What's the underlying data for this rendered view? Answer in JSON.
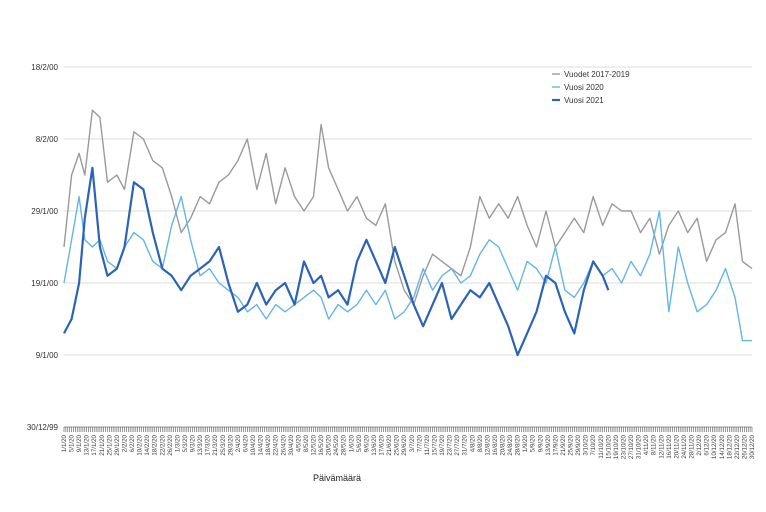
{
  "chart_data": {
    "type": "line",
    "title": "",
    "xlabel": "Päivämäärä",
    "ylabel": "",
    "x_start": "1/1/20",
    "x_end": "30/12/20",
    "x_tick_step_days": 4,
    "y_ticks": [
      "30/12/99",
      "9/1/00",
      "19/1/00",
      "29/1/00",
      "8/2/00",
      "18/2/00"
    ],
    "ylim": [
      "30/12/99",
      "18/2/00"
    ],
    "grid": "horizontal",
    "legend_position": "top-right",
    "series": [
      {
        "name": "Vuodet 2017-2019",
        "color": "#9a9a9a",
        "points": [
          [
            "1/1/20",
            "24/1/00"
          ],
          [
            "5/1/20",
            "3/2/00"
          ],
          [
            "9/1/20",
            "6/2/00"
          ],
          [
            "12/1/20",
            "3/2/00"
          ],
          [
            "16/1/20",
            "12/2/00"
          ],
          [
            "20/1/20",
            "11/2/00"
          ],
          [
            "24/1/20",
            "2/2/00"
          ],
          [
            "29/1/20",
            "3/2/00"
          ],
          [
            "2/2/20",
            "1/2/00"
          ],
          [
            "7/2/20",
            "9/2/00"
          ],
          [
            "12/2/20",
            "8/2/00"
          ],
          [
            "17/2/20",
            "5/2/00"
          ],
          [
            "22/2/20",
            "4/2/00"
          ],
          [
            "27/2/20",
            "31/1/00"
          ],
          [
            "3/3/20",
            "26/1/00"
          ],
          [
            "8/3/20",
            "28/1/00"
          ],
          [
            "13/3/20",
            "31/1/00"
          ],
          [
            "18/3/20",
            "30/1/00"
          ],
          [
            "23/3/20",
            "2/2/00"
          ],
          [
            "28/3/20",
            "3/2/00"
          ],
          [
            "2/4/20",
            "5/2/00"
          ],
          [
            "7/4/20",
            "8/2/00"
          ],
          [
            "12/4/20",
            "1/2/00"
          ],
          [
            "17/4/20",
            "6/2/00"
          ],
          [
            "22/4/20",
            "30/1/00"
          ],
          [
            "27/4/20",
            "4/2/00"
          ],
          [
            "2/5/20",
            "31/1/00"
          ],
          [
            "7/5/20",
            "29/1/00"
          ],
          [
            "12/5/20",
            "31/1/00"
          ],
          [
            "16/5/20",
            "10/2/00"
          ],
          [
            "20/5/20",
            "4/2/00"
          ],
          [
            "25/5/20",
            "1/2/00"
          ],
          [
            "30/5/20",
            "29/1/00"
          ],
          [
            "4/6/20",
            "31/1/00"
          ],
          [
            "9/6/20",
            "28/1/00"
          ],
          [
            "14/6/20",
            "27/1/00"
          ],
          [
            "19/6/20",
            "30/1/00"
          ],
          [
            "24/6/20",
            "22/1/00"
          ],
          [
            "29/6/20",
            "18/1/00"
          ],
          [
            "4/7/20",
            "16/1/00"
          ],
          [
            "9/7/20",
            "20/1/00"
          ],
          [
            "14/7/20",
            "23/1/00"
          ],
          [
            "19/7/20",
            "22/1/00"
          ],
          [
            "24/7/20",
            "21/1/00"
          ],
          [
            "29/7/20",
            "20/1/00"
          ],
          [
            "3/8/20",
            "24/1/00"
          ],
          [
            "8/8/20",
            "31/1/00"
          ],
          [
            "13/8/20",
            "28/1/00"
          ],
          [
            "18/8/20",
            "30/1/00"
          ],
          [
            "23/8/20",
            "28/1/00"
          ],
          [
            "28/8/20",
            "31/1/00"
          ],
          [
            "2/9/20",
            "27/1/00"
          ],
          [
            "7/9/20",
            "24/1/00"
          ],
          [
            "12/9/20",
            "29/1/00"
          ],
          [
            "17/9/20",
            "24/1/00"
          ],
          [
            "22/9/20",
            "26/1/00"
          ],
          [
            "27/9/20",
            "28/1/00"
          ],
          [
            "2/10/20",
            "26/1/00"
          ],
          [
            "7/10/20",
            "31/1/00"
          ],
          [
            "12/10/20",
            "27/1/00"
          ],
          [
            "17/10/20",
            "30/1/00"
          ],
          [
            "22/10/20",
            "29/1/00"
          ],
          [
            "27/10/20",
            "29/1/00"
          ],
          [
            "1/11/20",
            "26/1/00"
          ],
          [
            "6/11/20",
            "28/1/00"
          ],
          [
            "11/11/20",
            "23/1/00"
          ],
          [
            "16/11/20",
            "27/1/00"
          ],
          [
            "21/11/20",
            "29/1/00"
          ],
          [
            "26/11/20",
            "26/1/00"
          ],
          [
            "1/12/20",
            "28/1/00"
          ],
          [
            "6/12/20",
            "22/1/00"
          ],
          [
            "11/12/20",
            "25/1/00"
          ],
          [
            "16/12/20",
            "26/1/00"
          ],
          [
            "21/12/20",
            "30/1/00"
          ],
          [
            "25/12/20",
            "22/1/00"
          ],
          [
            "30/12/20",
            "21/1/00"
          ]
        ]
      },
      {
        "name": "Vuosi 2020",
        "color": "#64b5e8",
        "points": [
          [
            "1/1/20",
            "19/1/00"
          ],
          [
            "5/1/20",
            "25/1/00"
          ],
          [
            "9/1/20",
            "31/1/00"
          ],
          [
            "12/1/20",
            "25/1/00"
          ],
          [
            "16/1/20",
            "24/1/00"
          ],
          [
            "20/1/20",
            "25/1/00"
          ],
          [
            "24/1/20",
            "22/1/00"
          ],
          [
            "29/1/20",
            "21/1/00"
          ],
          [
            "2/2/20",
            "24/1/00"
          ],
          [
            "7/2/20",
            "26/1/00"
          ],
          [
            "12/2/20",
            "25/1/00"
          ],
          [
            "17/2/20",
            "22/1/00"
          ],
          [
            "22/2/20",
            "21/1/00"
          ],
          [
            "27/2/20",
            "27/1/00"
          ],
          [
            "3/3/20",
            "31/1/00"
          ],
          [
            "8/3/20",
            "25/1/00"
          ],
          [
            "13/3/20",
            "20/1/00"
          ],
          [
            "18/3/20",
            "21/1/00"
          ],
          [
            "23/3/20",
            "19/1/00"
          ],
          [
            "28/3/20",
            "18/1/00"
          ],
          [
            "2/4/20",
            "17/1/00"
          ],
          [
            "7/4/20",
            "15/1/00"
          ],
          [
            "12/4/20",
            "16/1/00"
          ],
          [
            "17/4/20",
            "14/1/00"
          ],
          [
            "22/4/20",
            "16/1/00"
          ],
          [
            "27/4/20",
            "15/1/00"
          ],
          [
            "2/5/20",
            "16/1/00"
          ],
          [
            "7/5/20",
            "17/1/00"
          ],
          [
            "12/5/20",
            "18/1/00"
          ],
          [
            "16/5/20",
            "17/1/00"
          ],
          [
            "20/5/20",
            "14/1/00"
          ],
          [
            "25/5/20",
            "16/1/00"
          ],
          [
            "30/5/20",
            "15/1/00"
          ],
          [
            "4/6/20",
            "16/1/00"
          ],
          [
            "9/6/20",
            "18/1/00"
          ],
          [
            "14/6/20",
            "16/1/00"
          ],
          [
            "19/6/20",
            "18/1/00"
          ],
          [
            "24/6/20",
            "14/1/00"
          ],
          [
            "29/6/20",
            "15/1/00"
          ],
          [
            "4/7/20",
            "17/1/00"
          ],
          [
            "9/7/20",
            "21/1/00"
          ],
          [
            "14/7/20",
            "18/1/00"
          ],
          [
            "19/7/20",
            "20/1/00"
          ],
          [
            "24/7/20",
            "21/1/00"
          ],
          [
            "29/7/20",
            "19/1/00"
          ],
          [
            "3/8/20",
            "20/1/00"
          ],
          [
            "8/8/20",
            "23/1/00"
          ],
          [
            "13/8/20",
            "25/1/00"
          ],
          [
            "18/8/20",
            "24/1/00"
          ],
          [
            "23/8/20",
            "21/1/00"
          ],
          [
            "28/8/20",
            "18/1/00"
          ],
          [
            "2/9/20",
            "22/1/00"
          ],
          [
            "7/9/20",
            "21/1/00"
          ],
          [
            "12/9/20",
            "19/1/00"
          ],
          [
            "17/9/20",
            "24/1/00"
          ],
          [
            "22/9/20",
            "18/1/00"
          ],
          [
            "27/9/20",
            "17/1/00"
          ],
          [
            "2/10/20",
            "19/1/00"
          ],
          [
            "7/10/20",
            "22/1/00"
          ],
          [
            "12/10/20",
            "20/1/00"
          ],
          [
            "17/10/20",
            "21/1/00"
          ],
          [
            "22/10/20",
            "19/1/00"
          ],
          [
            "27/10/20",
            "22/1/00"
          ],
          [
            "1/11/20",
            "20/1/00"
          ],
          [
            "6/11/20",
            "23/1/00"
          ],
          [
            "11/11/20",
            "29/1/00"
          ],
          [
            "16/11/20",
            "15/1/00"
          ],
          [
            "21/11/20",
            "24/1/00"
          ],
          [
            "26/11/20",
            "19/1/00"
          ],
          [
            "1/12/20",
            "15/1/00"
          ],
          [
            "6/12/20",
            "16/1/00"
          ],
          [
            "11/12/20",
            "18/1/00"
          ],
          [
            "16/12/20",
            "21/1/00"
          ],
          [
            "21/12/20",
            "17/1/00"
          ],
          [
            "25/12/20",
            "11/1/00"
          ],
          [
            "30/12/20",
            "11/1/00"
          ]
        ]
      },
      {
        "name": "Vuosi 2021",
        "color": "#2b63b6",
        "points": [
          [
            "1/1/20",
            "12/1/00"
          ],
          [
            "5/1/20",
            "14/1/00"
          ],
          [
            "9/1/20",
            "19/1/00"
          ],
          [
            "12/1/20",
            "28/1/00"
          ],
          [
            "16/1/20",
            "35/1/00"
          ],
          [
            "20/1/20",
            "24/1/00"
          ],
          [
            "24/1/20",
            "20/1/00"
          ],
          [
            "29/1/20",
            "21/1/00"
          ],
          [
            "2/2/20",
            "24/1/00"
          ],
          [
            "7/2/20",
            "33/1/00"
          ],
          [
            "12/2/20",
            "32/1/00"
          ],
          [
            "17/2/20",
            "26/1/00"
          ],
          [
            "22/2/20",
            "21/1/00"
          ],
          [
            "27/2/20",
            "20/1/00"
          ],
          [
            "3/3/20",
            "18/1/00"
          ],
          [
            "8/3/20",
            "20/1/00"
          ],
          [
            "13/3/20",
            "21/1/00"
          ],
          [
            "18/3/20",
            "22/1/00"
          ],
          [
            "23/3/20",
            "24/1/00"
          ],
          [
            "28/3/20",
            "19/1/00"
          ],
          [
            "2/4/20",
            "15/1/00"
          ],
          [
            "7/4/20",
            "16/1/00"
          ],
          [
            "12/4/20",
            "19/1/00"
          ],
          [
            "17/4/20",
            "16/1/00"
          ],
          [
            "22/4/20",
            "18/1/00"
          ],
          [
            "27/4/20",
            "19/1/00"
          ],
          [
            "2/5/20",
            "16/1/00"
          ],
          [
            "7/5/20",
            "22/1/00"
          ],
          [
            "12/5/20",
            "19/1/00"
          ],
          [
            "16/5/20",
            "20/1/00"
          ],
          [
            "20/5/20",
            "17/1/00"
          ],
          [
            "25/5/20",
            "18/1/00"
          ],
          [
            "30/5/20",
            "16/1/00"
          ],
          [
            "4/6/20",
            "22/1/00"
          ],
          [
            "9/6/20",
            "25/1/00"
          ],
          [
            "14/6/20",
            "22/1/00"
          ],
          [
            "19/6/20",
            "19/1/00"
          ],
          [
            "24/6/20",
            "24/1/00"
          ],
          [
            "29/6/20",
            "20/1/00"
          ],
          [
            "4/7/20",
            "16/1/00"
          ],
          [
            "9/7/20",
            "13/1/00"
          ],
          [
            "14/7/20",
            "16/1/00"
          ],
          [
            "19/7/20",
            "19/1/00"
          ],
          [
            "24/7/20",
            "14/1/00"
          ],
          [
            "29/7/20",
            "16/1/00"
          ],
          [
            "3/8/20",
            "18/1/00"
          ],
          [
            "8/8/20",
            "17/1/00"
          ],
          [
            "13/8/20",
            "19/1/00"
          ],
          [
            "18/8/20",
            "16/1/00"
          ],
          [
            "23/8/20",
            "13/1/00"
          ],
          [
            "28/8/20",
            "9/1/00"
          ],
          [
            "2/9/20",
            "12/1/00"
          ],
          [
            "7/9/20",
            "15/1/00"
          ],
          [
            "12/9/20",
            "20/1/00"
          ],
          [
            "17/9/20",
            "19/1/00"
          ],
          [
            "22/9/20",
            "15/1/00"
          ],
          [
            "27/9/20",
            "12/1/00"
          ],
          [
            "2/10/20",
            "18/1/00"
          ],
          [
            "7/10/20",
            "22/1/00"
          ],
          [
            "12/10/20",
            "20/1/00"
          ],
          [
            "15/10/20",
            "18/1/00"
          ]
        ]
      }
    ]
  }
}
